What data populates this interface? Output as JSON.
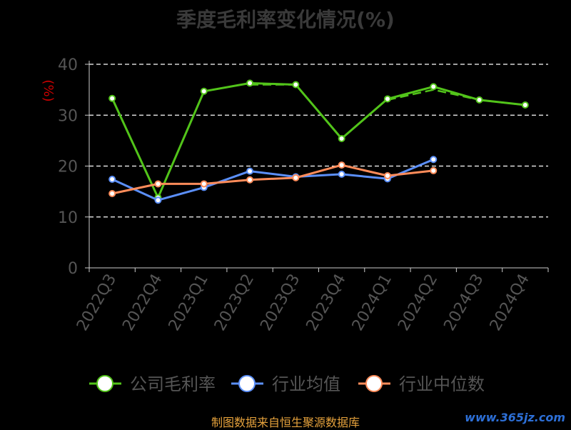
{
  "source_note": "制图数据来自恒生聚源数据库",
  "watermark": "www.365jz.com",
  "colors": {
    "background": "#000000",
    "axis": "#cccccc",
    "grid": "#ffffff",
    "unit": "#cc0000",
    "tick_text": "#555555",
    "legend_text": "#555555"
  },
  "chart_data": {
    "type": "line",
    "title": "季度毛利率变化情况(%)",
    "ylabel": "(%)",
    "xlabel": "",
    "categories": [
      "2022Q3",
      "2022Q4",
      "2023Q1",
      "2023Q2",
      "2023Q3",
      "2023Q4",
      "2024Q1",
      "2024Q2",
      "2024Q3",
      "2024Q4"
    ],
    "ylim": [
      0,
      40
    ],
    "yticks": [
      0,
      10,
      20,
      30,
      40
    ],
    "grid": "horizontal-dashed",
    "legend_position": "bottom-center",
    "series": [
      {
        "name": "公司毛利率",
        "color": "#52c41a",
        "values": [
          33.3,
          13.8,
          34.7,
          36.3,
          36.0,
          25.4,
          33.2,
          35.6,
          33.0,
          32.0
        ],
        "trend": [
          null,
          null,
          null,
          36.0,
          36.0,
          null,
          33.0,
          35.0,
          33.0,
          32.0
        ]
      },
      {
        "name": "行业均值",
        "color": "#5b8ff9",
        "values": [
          17.4,
          13.3,
          15.8,
          19.0,
          17.9,
          18.4,
          17.5,
          21.3,
          null,
          null
        ]
      },
      {
        "name": "行业中位数",
        "color": "#ff8c5a",
        "values": [
          14.6,
          16.5,
          16.5,
          17.3,
          17.7,
          20.2,
          18.1,
          19.1,
          null,
          null
        ]
      }
    ]
  }
}
